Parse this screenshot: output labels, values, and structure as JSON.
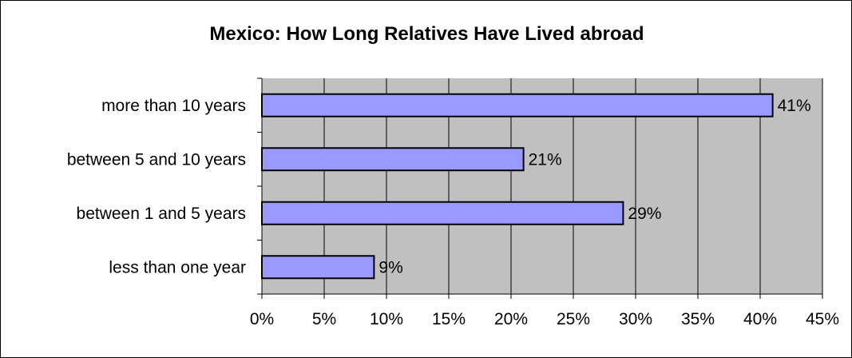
{
  "chart_data": {
    "type": "bar",
    "orientation": "horizontal",
    "title": "Mexico: How Long Relatives Have Lived abroad",
    "categories": [
      "more than 10 years",
      "between 5 and 10 years",
      "between 1 and 5 years",
      "less than one year"
    ],
    "values": [
      41,
      21,
      29,
      9
    ],
    "data_labels": [
      "41%",
      "21%",
      "29%",
      "9%"
    ],
    "x_ticks": [
      "0%",
      "5%",
      "10%",
      "15%",
      "20%",
      "25%",
      "30%",
      "35%",
      "40%",
      "45%"
    ],
    "xlim": [
      0,
      45
    ],
    "xlabel": "",
    "ylabel": "",
    "grid": true,
    "legend": "none",
    "colors": {
      "bar": "#9999ff",
      "plot_background": "#c0c0c0",
      "gridline": "#000000",
      "bar_border": "#000000"
    }
  }
}
